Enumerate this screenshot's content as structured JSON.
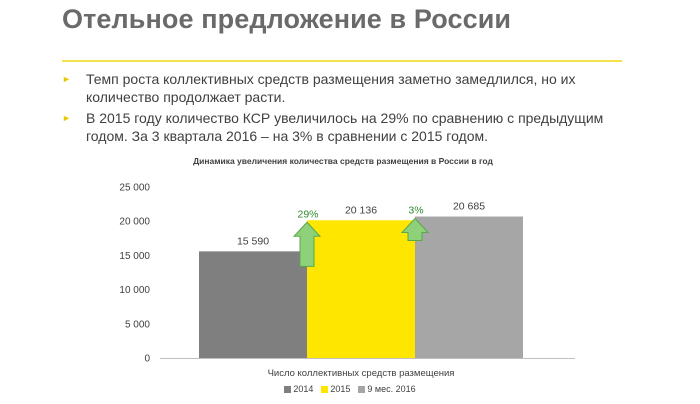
{
  "slide": {
    "title": "Отельное предложение в России",
    "bullets": [
      "Темп роста коллективных средств размещения заметно замедлился, но их количество продолжает расти.",
      "В 2015 году количество КСР увеличилось на 29% по сравнению с предыдущим годом. За 3 квартала 2016 – на 3% в сравнении с 2015 годом."
    ]
  },
  "chart_data": {
    "type": "bar",
    "title": "Динамика увеличения количества средств размещения в России в год",
    "categories": [
      "Число коллективных средств размещения"
    ],
    "xlabel": "",
    "ylabel": "",
    "ylim": [
      0,
      25000
    ],
    "y_ticks": [
      "0",
      "5 000",
      "10 000",
      "15 000",
      "20 000",
      "25 000"
    ],
    "grid": false,
    "legend_position": "bottom",
    "series": [
      {
        "name": "2014",
        "values": [
          15590
        ],
        "label": "15 590",
        "color": "#7f7f7f"
      },
      {
        "name": "2015",
        "values": [
          20136
        ],
        "label": "20 136",
        "color": "#ffe600"
      },
      {
        "name": "9 мес. 2016",
        "values": [
          20685
        ],
        "label": "20 685",
        "color": "#a6a6a6"
      }
    ],
    "annotations": [
      {
        "text": "29%",
        "between": [
          "2014",
          "2015"
        ],
        "color": "#2e8b2e",
        "arrow_color": "#8fd07a"
      },
      {
        "text": "3%",
        "between": [
          "2015",
          "9 мес. 2016"
        ],
        "color": "#2e8b2e",
        "arrow_color": "#8fd07a"
      }
    ]
  }
}
